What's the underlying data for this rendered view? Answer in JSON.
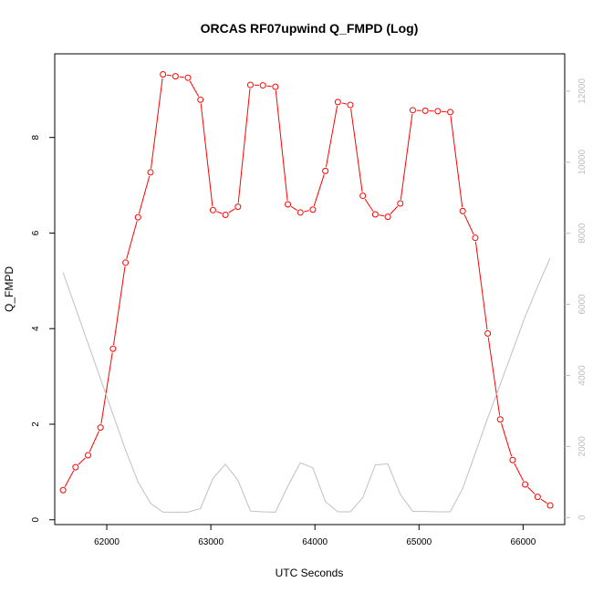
{
  "chart_data": {
    "type": "line",
    "title": "ORCAS RF07upwind Q_FMPD (Log)",
    "xlabel": "UTC Seconds",
    "ylabel": "Q_FMPD",
    "xlim": [
      61500,
      66400
    ],
    "ylim": [
      -0.1,
      9.75
    ],
    "y2lim": [
      -200,
      13050
    ],
    "x_ticks": [
      62000,
      63000,
      64000,
      65000,
      66000
    ],
    "y_ticks": [
      0,
      2,
      4,
      6,
      8
    ],
    "y2_ticks": [
      0,
      2000,
      4000,
      6000,
      8000,
      10000,
      12000
    ],
    "grid": false,
    "series": [
      {
        "color": "#ff0000",
        "axis": "left",
        "markers": "open-circle",
        "x": [
          61580,
          61700,
          61820,
          61940,
          62060,
          62180,
          62300,
          62420,
          62540,
          62660,
          62780,
          62900,
          63020,
          63140,
          63260,
          63380,
          63500,
          63620,
          63740,
          63860,
          63980,
          64100,
          64220,
          64340,
          64460,
          64580,
          64700,
          64820,
          64940,
          65060,
          65180,
          65300,
          65420,
          65540,
          65660,
          65780,
          65900,
          66020,
          66140,
          66260
        ],
        "values": [
          0.62,
          1.1,
          1.35,
          1.93,
          3.58,
          5.38,
          6.33,
          7.27,
          9.32,
          9.28,
          9.25,
          8.79,
          6.48,
          6.38,
          6.55,
          9.1,
          9.09,
          9.06,
          6.6,
          6.43,
          6.49,
          7.3,
          8.74,
          8.68,
          6.78,
          6.39,
          6.34,
          6.62,
          8.57,
          8.56,
          8.55,
          8.53,
          6.46,
          5.9,
          3.9,
          2.1,
          1.25,
          0.74,
          0.48,
          0.3
        ]
      },
      {
        "color": "#c0c0c0",
        "axis": "right",
        "markers": "none",
        "x": [
          61580,
          61700,
          61820,
          61940,
          62060,
          62180,
          62300,
          62420,
          62540,
          62660,
          62780,
          62900,
          63020,
          63140,
          63260,
          63380,
          63500,
          63620,
          63740,
          63860,
          63980,
          64100,
          64220,
          64340,
          64460,
          64580,
          64700,
          64820,
          64940,
          65060,
          65180,
          65300,
          65420,
          65540,
          65660,
          65780,
          65900,
          66020,
          66140,
          66260
        ],
        "values": [
          6900,
          5900,
          4900,
          3900,
          2900,
          1900,
          1000,
          400,
          150,
          150,
          150,
          250,
          1100,
          1500,
          1050,
          180,
          160,
          150,
          880,
          1540,
          1400,
          450,
          160,
          160,
          560,
          1480,
          1510,
          650,
          170,
          170,
          160,
          160,
          820,
          1800,
          2800,
          3750,
          4700,
          5650,
          6500,
          7300
        ]
      }
    ]
  }
}
